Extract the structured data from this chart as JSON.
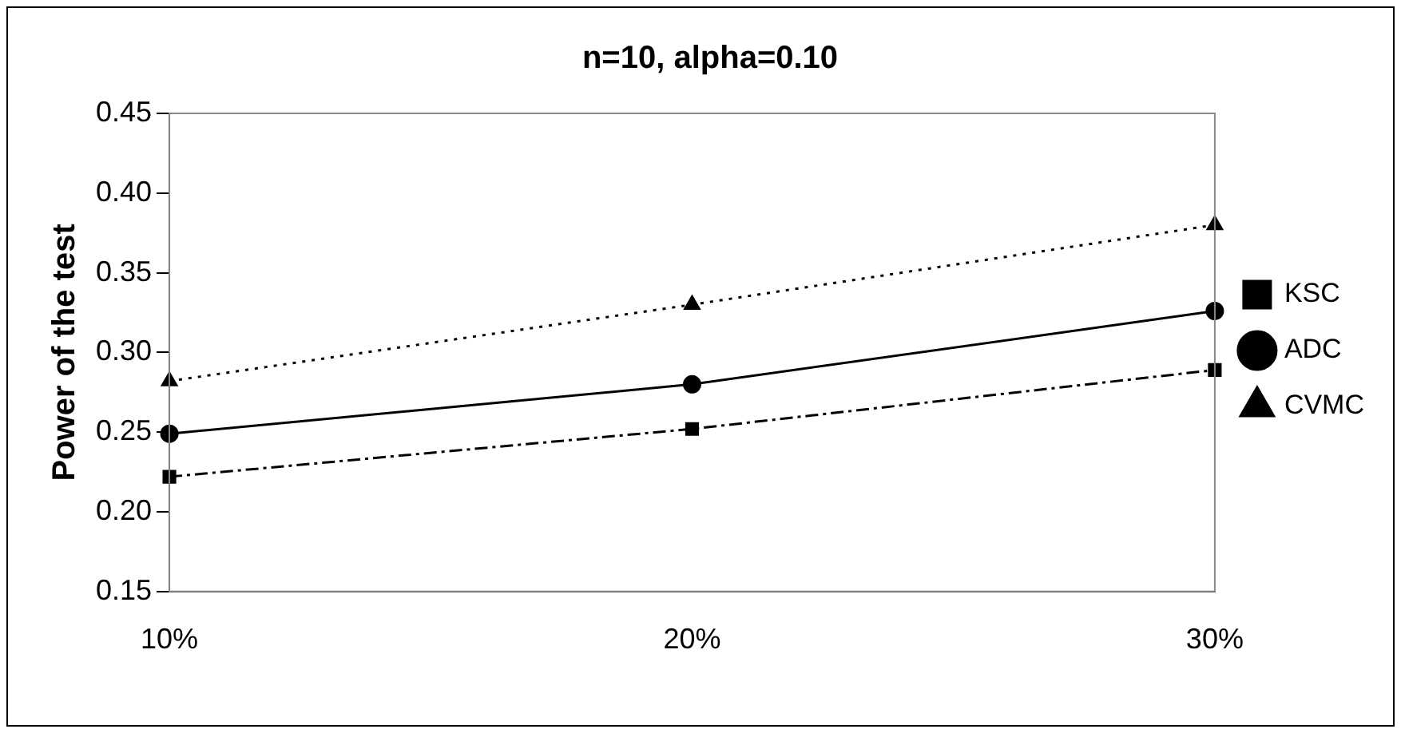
{
  "chart_data": {
    "type": "line",
    "title": "n=10, alpha=0.10",
    "ylabel": "Power of the test",
    "categories": [
      "10%",
      "20%",
      "30%"
    ],
    "series": [
      {
        "name": "KSC",
        "color": "#000000",
        "marker": "square",
        "line_style": "dashed",
        "values": [
          0.222,
          0.252,
          0.289
        ]
      },
      {
        "name": "ADC",
        "color": "#000000",
        "marker": "circle",
        "line_style": "solid",
        "values": [
          0.249,
          0.28,
          0.326
        ]
      },
      {
        "name": "CVMC",
        "color": "#000000",
        "marker": "triangle",
        "line_style": "dotted",
        "values": [
          0.282,
          0.33,
          0.38
        ]
      }
    ],
    "ylim": [
      0.15,
      0.45
    ],
    "yticks": [
      {
        "value": 0.15,
        "label": "0.15"
      },
      {
        "value": 0.2,
        "label": "0.20"
      },
      {
        "value": 0.25,
        "label": "0.25"
      },
      {
        "value": 0.3,
        "label": "0.30"
      },
      {
        "value": 0.35,
        "label": "0.35"
      },
      {
        "value": 0.4,
        "label": "0.40"
      },
      {
        "value": 0.45,
        "label": "0.45"
      }
    ],
    "grid": false,
    "legend": "right"
  }
}
